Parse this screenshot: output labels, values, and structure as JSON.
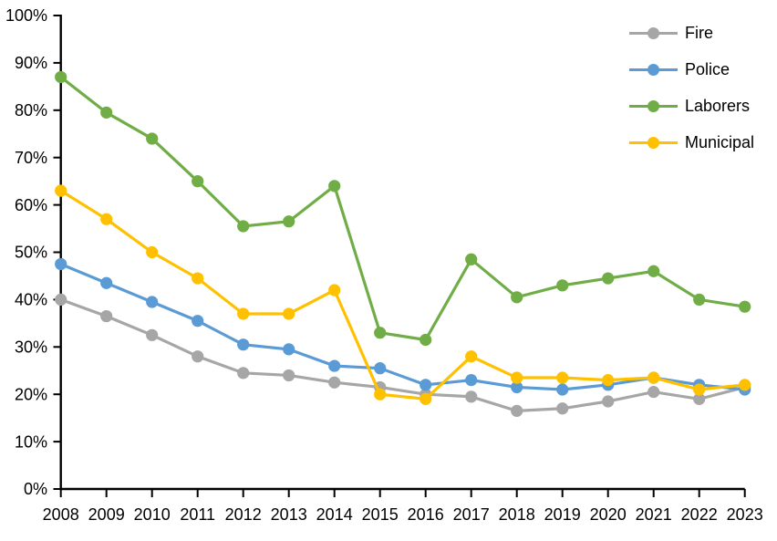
{
  "chart_data": {
    "type": "line",
    "title": "",
    "xlabel": "",
    "ylabel": "",
    "x_categories": [
      "2008",
      "2009",
      "2010",
      "2011",
      "2012",
      "2013",
      "2014",
      "2015",
      "2016",
      "2017",
      "2018",
      "2019",
      "2020",
      "2021",
      "2022",
      "2023"
    ],
    "y_tick_labels": [
      "0%",
      "10%",
      "20%",
      "30%",
      "40%",
      "50%",
      "60%",
      "70%",
      "80%",
      "90%",
      "100%"
    ],
    "ylim": [
      0,
      100
    ],
    "ytick_step": 10,
    "grid": false,
    "legend_position": "top-right",
    "axis_color": "#000000",
    "series": [
      {
        "name": "Fire",
        "color": "#A6A6A6",
        "values": [
          40,
          36.5,
          32.5,
          28,
          24.5,
          24,
          22.5,
          21.5,
          20,
          19.5,
          16.5,
          17,
          18.5,
          20.5,
          19,
          21.5
        ]
      },
      {
        "name": "Police",
        "color": "#5B9BD5",
        "values": [
          47.5,
          43.5,
          39.5,
          35.5,
          30.5,
          29.5,
          26,
          25.5,
          22,
          23,
          21.5,
          21,
          22,
          23.5,
          22,
          21
        ]
      },
      {
        "name": "Laborers",
        "color": "#70AD47",
        "values": [
          87,
          79.5,
          74,
          65,
          55.5,
          56.5,
          64,
          33,
          31.5,
          48.5,
          40.5,
          43,
          44.5,
          46,
          40,
          38.5
        ]
      },
      {
        "name": "Municipal",
        "color": "#FFC000",
        "values": [
          63,
          57,
          50,
          44.5,
          37,
          37,
          42,
          20,
          19,
          28,
          23.5,
          23.5,
          23,
          23.5,
          21,
          22
        ]
      }
    ]
  }
}
